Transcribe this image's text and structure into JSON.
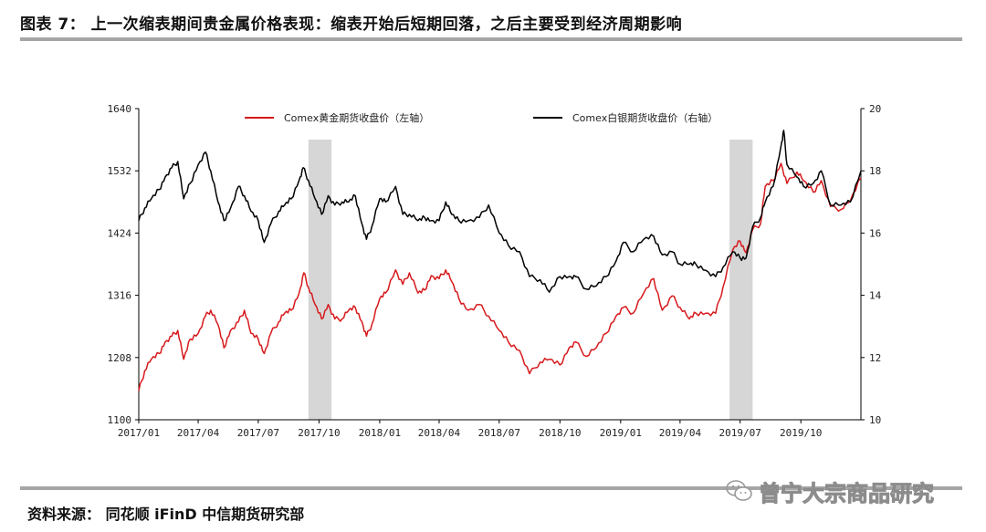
{
  "title": "图表 7：  上一次缩表期间贵金属价格表现：缩表开始后短期回落，之后主要受到经济周期影响",
  "source": "资料来源：  同花顺 iFinD  中信期货研究部",
  "watermark": "曾宁大宗商品研究",
  "chart_data": {
    "type": "line",
    "x_labels": [
      "2017/01",
      "2017/04",
      "2017/07",
      "2017/10",
      "2018/01",
      "2018/04",
      "2018/07",
      "2018/10",
      "2019/01",
      "2019/04",
      "2019/07",
      "2019/10"
    ],
    "x_range": [
      "2017-01-01",
      "2019-12-31"
    ],
    "y_left": {
      "min": 1100,
      "max": 1640,
      "ticks": [
        1100,
        1208,
        1316,
        1424,
        1532,
        1640
      ]
    },
    "y_right": {
      "min": 10,
      "max": 20,
      "ticks": [
        10,
        12,
        14,
        16,
        18,
        20
      ]
    },
    "shaded_periods": [
      [
        "2017-09-15",
        "2017-10-20"
      ],
      [
        "2019-06-15",
        "2019-07-20"
      ]
    ],
    "legend_position": "top",
    "series": [
      {
        "name": "Comex黄金期货收盘价（左轴）",
        "axis": "left",
        "color": "#d7191c",
        "points": [
          [
            "2017-01-01",
            1150
          ],
          [
            "2017-01-10",
            1185
          ],
          [
            "2017-01-20",
            1205
          ],
          [
            "2017-02-01",
            1215
          ],
          [
            "2017-02-10",
            1235
          ],
          [
            "2017-02-20",
            1245
          ],
          [
            "2017-03-01",
            1255
          ],
          [
            "2017-03-10",
            1205
          ],
          [
            "2017-03-20",
            1240
          ],
          [
            "2017-04-01",
            1250
          ],
          [
            "2017-04-12",
            1280
          ],
          [
            "2017-04-20",
            1290
          ],
          [
            "2017-05-01",
            1265
          ],
          [
            "2017-05-10",
            1225
          ],
          [
            "2017-05-20",
            1255
          ],
          [
            "2017-06-01",
            1270
          ],
          [
            "2017-06-10",
            1290
          ],
          [
            "2017-06-20",
            1250
          ],
          [
            "2017-07-01",
            1240
          ],
          [
            "2017-07-10",
            1215
          ],
          [
            "2017-07-20",
            1250
          ],
          [
            "2017-08-01",
            1270
          ],
          [
            "2017-08-10",
            1285
          ],
          [
            "2017-08-20",
            1290
          ],
          [
            "2017-09-01",
            1320
          ],
          [
            "2017-09-08",
            1355
          ],
          [
            "2017-09-15",
            1330
          ],
          [
            "2017-09-25",
            1300
          ],
          [
            "2017-10-05",
            1275
          ],
          [
            "2017-10-15",
            1300
          ],
          [
            "2017-10-25",
            1275
          ],
          [
            "2017-11-05",
            1275
          ],
          [
            "2017-11-15",
            1290
          ],
          [
            "2017-11-25",
            1295
          ],
          [
            "2017-12-05",
            1270
          ],
          [
            "2017-12-12",
            1245
          ],
          [
            "2017-12-20",
            1265
          ],
          [
            "2018-01-01",
            1310
          ],
          [
            "2018-01-10",
            1320
          ],
          [
            "2018-01-25",
            1360
          ],
          [
            "2018-02-05",
            1335
          ],
          [
            "2018-02-15",
            1355
          ],
          [
            "2018-02-28",
            1320
          ],
          [
            "2018-03-10",
            1325
          ],
          [
            "2018-03-20",
            1350
          ],
          [
            "2018-04-01",
            1345
          ],
          [
            "2018-04-11",
            1360
          ],
          [
            "2018-04-20",
            1340
          ],
          [
            "2018-05-01",
            1310
          ],
          [
            "2018-05-15",
            1290
          ],
          [
            "2018-06-01",
            1300
          ],
          [
            "2018-06-15",
            1280
          ],
          [
            "2018-07-01",
            1255
          ],
          [
            "2018-07-15",
            1235
          ],
          [
            "2018-08-01",
            1220
          ],
          [
            "2018-08-16",
            1180
          ],
          [
            "2018-09-01",
            1200
          ],
          [
            "2018-09-15",
            1205
          ],
          [
            "2018-10-01",
            1195
          ],
          [
            "2018-10-15",
            1225
          ],
          [
            "2018-10-25",
            1235
          ],
          [
            "2018-11-10",
            1210
          ],
          [
            "2018-11-25",
            1225
          ],
          [
            "2018-12-10",
            1250
          ],
          [
            "2018-12-25",
            1280
          ],
          [
            "2019-01-05",
            1295
          ],
          [
            "2019-01-20",
            1285
          ],
          [
            "2019-02-05",
            1320
          ],
          [
            "2019-02-20",
            1345
          ],
          [
            "2019-03-05",
            1290
          ],
          [
            "2019-03-20",
            1315
          ],
          [
            "2019-04-01",
            1295
          ],
          [
            "2019-04-15",
            1275
          ],
          [
            "2019-04-25",
            1285
          ],
          [
            "2019-05-10",
            1285
          ],
          [
            "2019-05-25",
            1285
          ],
          [
            "2019-06-05",
            1330
          ],
          [
            "2019-06-20",
            1395
          ],
          [
            "2019-07-01",
            1410
          ],
          [
            "2019-07-10",
            1390
          ],
          [
            "2019-07-20",
            1430
          ],
          [
            "2019-08-01",
            1440
          ],
          [
            "2019-08-08",
            1505
          ],
          [
            "2019-08-20",
            1515
          ],
          [
            "2019-09-01",
            1545
          ],
          [
            "2019-09-10",
            1510
          ],
          [
            "2019-09-25",
            1530
          ],
          [
            "2019-10-05",
            1515
          ],
          [
            "2019-10-20",
            1495
          ],
          [
            "2019-11-01",
            1515
          ],
          [
            "2019-11-15",
            1470
          ],
          [
            "2019-12-01",
            1465
          ],
          [
            "2019-12-15",
            1480
          ],
          [
            "2019-12-31",
            1520
          ]
        ]
      },
      {
        "name": "Comex白银期货收盘价（右轴）",
        "axis": "right",
        "color": "#000000",
        "points": [
          [
            "2017-01-01",
            16.4
          ],
          [
            "2017-01-10",
            16.8
          ],
          [
            "2017-01-20",
            17.1
          ],
          [
            "2017-02-01",
            17.4
          ],
          [
            "2017-02-10",
            17.8
          ],
          [
            "2017-02-20",
            18.1
          ],
          [
            "2017-03-01",
            18.3
          ],
          [
            "2017-03-10",
            17.1
          ],
          [
            "2017-03-20",
            17.6
          ],
          [
            "2017-04-01",
            18.2
          ],
          [
            "2017-04-12",
            18.6
          ],
          [
            "2017-04-20",
            18.0
          ],
          [
            "2017-05-01",
            17.0
          ],
          [
            "2017-05-10",
            16.4
          ],
          [
            "2017-05-20",
            16.8
          ],
          [
            "2017-06-01",
            17.5
          ],
          [
            "2017-06-10",
            17.2
          ],
          [
            "2017-06-20",
            16.7
          ],
          [
            "2017-07-01",
            16.4
          ],
          [
            "2017-07-10",
            15.7
          ],
          [
            "2017-07-20",
            16.3
          ],
          [
            "2017-08-01",
            16.7
          ],
          [
            "2017-08-10",
            16.9
          ],
          [
            "2017-08-20",
            17.1
          ],
          [
            "2017-09-01",
            17.7
          ],
          [
            "2017-09-07",
            18.1
          ],
          [
            "2017-09-15",
            17.7
          ],
          [
            "2017-09-25",
            17.1
          ],
          [
            "2017-10-05",
            16.6
          ],
          [
            "2017-10-15",
            17.2
          ],
          [
            "2017-10-25",
            16.9
          ],
          [
            "2017-11-05",
            17.0
          ],
          [
            "2017-11-15",
            17.0
          ],
          [
            "2017-11-25",
            17.2
          ],
          [
            "2017-12-05",
            16.3
          ],
          [
            "2017-12-12",
            15.8
          ],
          [
            "2017-12-20",
            16.2
          ],
          [
            "2018-01-01",
            17.1
          ],
          [
            "2018-01-10",
            17.0
          ],
          [
            "2018-01-25",
            17.5
          ],
          [
            "2018-02-05",
            16.6
          ],
          [
            "2018-02-15",
            16.6
          ],
          [
            "2018-02-28",
            16.4
          ],
          [
            "2018-03-10",
            16.5
          ],
          [
            "2018-03-20",
            16.4
          ],
          [
            "2018-04-01",
            16.4
          ],
          [
            "2018-04-11",
            17.0
          ],
          [
            "2018-04-20",
            16.6
          ],
          [
            "2018-05-01",
            16.4
          ],
          [
            "2018-05-15",
            16.4
          ],
          [
            "2018-06-01",
            16.5
          ],
          [
            "2018-06-15",
            16.9
          ],
          [
            "2018-07-01",
            16.0
          ],
          [
            "2018-07-15",
            15.6
          ],
          [
            "2018-08-01",
            15.4
          ],
          [
            "2018-08-16",
            14.6
          ],
          [
            "2018-09-01",
            14.5
          ],
          [
            "2018-09-15",
            14.1
          ],
          [
            "2018-10-01",
            14.6
          ],
          [
            "2018-10-15",
            14.6
          ],
          [
            "2018-10-25",
            14.6
          ],
          [
            "2018-11-10",
            14.2
          ],
          [
            "2018-11-25",
            14.3
          ],
          [
            "2018-12-10",
            14.6
          ],
          [
            "2018-12-25",
            15.1
          ],
          [
            "2019-01-05",
            15.7
          ],
          [
            "2019-01-20",
            15.4
          ],
          [
            "2019-02-05",
            15.8
          ],
          [
            "2019-02-20",
            15.9
          ],
          [
            "2019-03-05",
            15.3
          ],
          [
            "2019-03-20",
            15.4
          ],
          [
            "2019-04-01",
            15.0
          ],
          [
            "2019-04-15",
            15.0
          ],
          [
            "2019-04-25",
            15.0
          ],
          [
            "2019-05-10",
            14.8
          ],
          [
            "2019-05-25",
            14.6
          ],
          [
            "2019-06-05",
            14.9
          ],
          [
            "2019-06-20",
            15.4
          ],
          [
            "2019-07-01",
            15.2
          ],
          [
            "2019-07-10",
            15.2
          ],
          [
            "2019-07-20",
            16.2
          ],
          [
            "2019-08-01",
            16.5
          ],
          [
            "2019-08-08",
            17.0
          ],
          [
            "2019-08-20",
            17.5
          ],
          [
            "2019-09-01",
            18.8
          ],
          [
            "2019-09-05",
            19.3
          ],
          [
            "2019-09-10",
            18.2
          ],
          [
            "2019-09-25",
            17.8
          ],
          [
            "2019-10-05",
            17.5
          ],
          [
            "2019-10-20",
            17.6
          ],
          [
            "2019-11-01",
            18.0
          ],
          [
            "2019-11-15",
            16.9
          ],
          [
            "2019-12-01",
            16.9
          ],
          [
            "2019-12-15",
            17.0
          ],
          [
            "2019-12-31",
            18.0
          ]
        ]
      }
    ]
  }
}
